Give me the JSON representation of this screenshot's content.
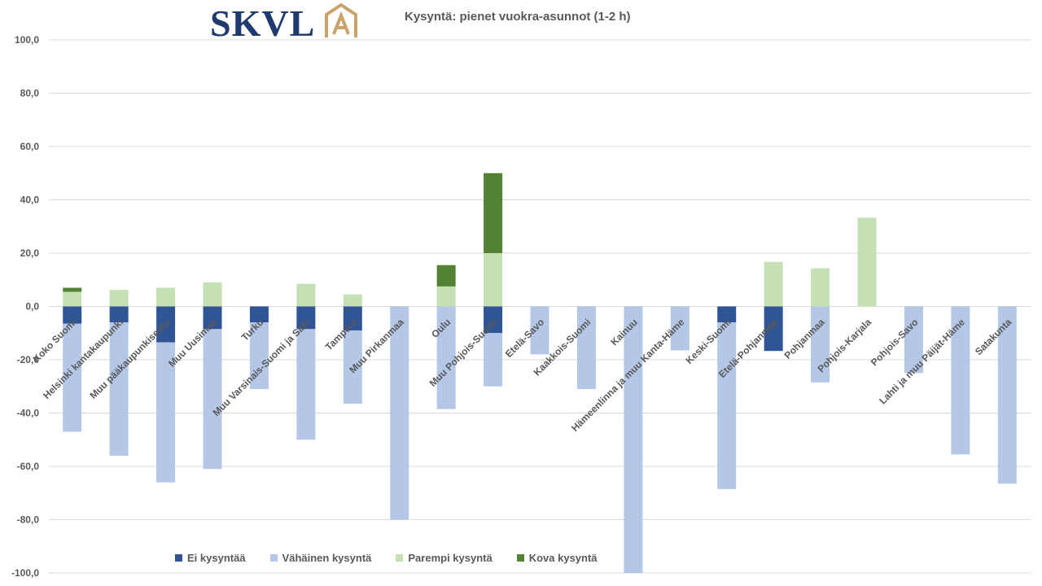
{
  "logo": {
    "text": "SKVL",
    "badge": "A",
    "text_color": "#1f3a6e",
    "badge_color": "#c9a36a"
  },
  "chart_data": {
    "type": "bar",
    "stacked": true,
    "title": "Kysyntä: pienet vuokra-asunnot (1-2 h)",
    "ylim": [
      -100,
      100
    ],
    "yticks": [
      "100,0",
      "80,0",
      "60,0",
      "40,0",
      "20,0",
      "0,0",
      "-20,0",
      "-40,0",
      "-60,0",
      "-80,0",
      "-100,0"
    ],
    "grid": true,
    "legend_position": "bottom",
    "categories": [
      "Koko Suomi",
      "Helsinki kantakaupunki",
      "Muu pääkaupunkiseutu",
      "Muu Uusimaa",
      "Turku",
      "Muu Varsinais-Suomi ja Salo",
      "Tampere",
      "Muu Pirkanmaa",
      "Oulu",
      "Muu Pohjois-Suomi",
      "Etelä-Savo",
      "Kaakkois-Suomi",
      "Kainuu",
      "Hämeenlinna ja muu Kanta-Häme",
      "Keski-Suomi",
      "Etelä-Pohjanmaa",
      "Pohjanmaa",
      "Pohjois-Karjala",
      "Pohjois-Savo",
      "Lahti ja muu Päijät-Häme",
      "Satakunta"
    ],
    "series": [
      {
        "name": "Ei kysyntää",
        "color": "#2f5597",
        "values": [
          -6.5,
          -6,
          -13.5,
          -8.5,
          -6,
          -8.5,
          -9,
          0,
          0,
          -10,
          0,
          0,
          0,
          0,
          -6,
          -16.7,
          0,
          0,
          0,
          0,
          0
        ]
      },
      {
        "name": "Vähäinen kysyntä",
        "color": "#b4c7e7",
        "values": [
          -40.5,
          -50,
          -52.5,
          -52.5,
          -25,
          -41.5,
          -27.5,
          -80,
          -38.5,
          -20,
          -18,
          -31,
          -100,
          -16.5,
          -62.5,
          0,
          -28.5,
          0,
          -25,
          -55.5,
          -66.5
        ]
      },
      {
        "name": "Parempi kysyntä",
        "color": "#c5e0b4",
        "values": [
          5.5,
          6.2,
          7,
          9,
          0,
          8.5,
          4.5,
          0,
          7.5,
          20,
          0,
          0,
          0,
          0,
          0,
          16.7,
          14.3,
          33.3,
          0,
          0,
          0
        ]
      },
      {
        "name": "Kova kysyntä",
        "color": "#548235",
        "values": [
          1.5,
          0,
          0,
          0,
          0,
          0,
          0,
          0,
          8,
          30,
          0,
          0,
          0,
          0,
          0,
          0,
          0,
          0,
          0,
          0,
          0
        ]
      }
    ]
  }
}
